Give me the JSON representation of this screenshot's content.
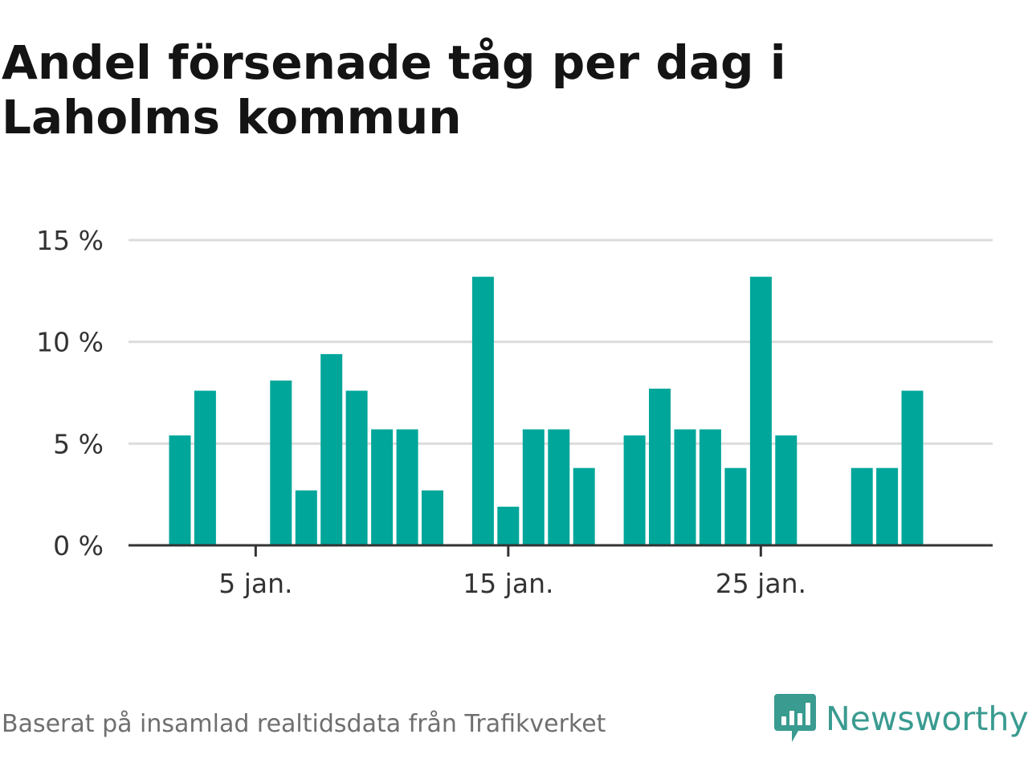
{
  "title": "Andel försenade tåg per dag i Laholms kommun",
  "source_note": "Baserat på insamlad realtidsdata från Trafikverket",
  "brand": {
    "name": "Newsworthy",
    "icon": "newsworthy-logo-icon",
    "color": "#3a9b90"
  },
  "colors": {
    "bar": "#00a69a",
    "grid": "#dcdcdc",
    "axis": "#333333"
  },
  "chart_data": {
    "type": "bar",
    "title": "Andel försenade tåg per dag i Laholms kommun",
    "xlabel": "",
    "ylabel": "",
    "x": [
      1,
      2,
      3,
      4,
      5,
      6,
      7,
      8,
      9,
      10,
      11,
      12,
      13,
      14,
      15,
      16,
      17,
      18,
      19,
      20,
      21,
      22,
      23,
      24,
      25,
      26,
      27,
      28,
      29,
      30,
      31
    ],
    "values": [
      null,
      5.4,
      7.6,
      null,
      null,
      8.1,
      2.7,
      9.4,
      7.6,
      5.7,
      5.7,
      2.7,
      null,
      13.2,
      1.9,
      5.7,
      5.7,
      3.8,
      null,
      5.4,
      7.7,
      5.7,
      5.7,
      3.8,
      13.2,
      5.4,
      null,
      null,
      3.8,
      3.8,
      7.6
    ],
    "x_ticks": [
      {
        "day": 5,
        "label": "5 jan."
      },
      {
        "day": 15,
        "label": "15 jan."
      },
      {
        "day": 25,
        "label": "25 jan."
      }
    ],
    "y_ticks": [
      {
        "value": 0,
        "label": "0 %"
      },
      {
        "value": 5,
        "label": "5 %"
      },
      {
        "value": 10,
        "label": "10 %"
      },
      {
        "value": 15,
        "label": "15 %"
      }
    ],
    "ylim": [
      0,
      15
    ],
    "grid": true,
    "legend": "none"
  }
}
